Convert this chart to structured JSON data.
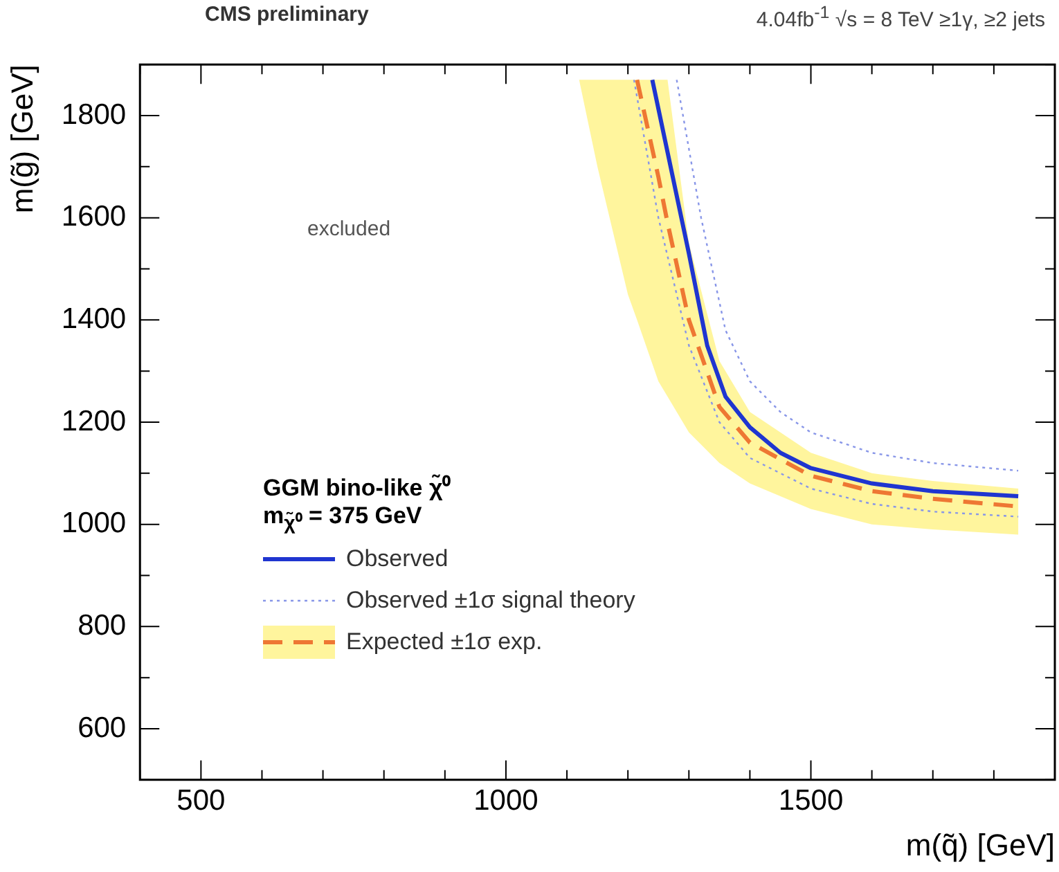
{
  "chart_data": {
    "type": "line",
    "title": "CMS preliminary",
    "subtitle": "4.04fb$^{-1}$ √s = 8 TeV   ≥1γ, ≥2 jets",
    "xlabel": "m(q̃) [GeV]",
    "ylabel": "m(g̃) [GeV]",
    "legend_title": "GGM bino-like χ̃⁰",
    "annotations": [
      "m$_{χ̃⁰}$ = 375 GeV",
      "excluded"
    ],
    "xlim": [
      400,
      1900
    ],
    "ylim": [
      500,
      1900
    ],
    "xticks": [
      {
        "value": 400,
        "label": null
      },
      500,
      {
        "value": 600,
        "label": null
      },
      {
        "value": 700,
        "label": null
      },
      {
        "value": 800,
        "label": null
      },
      {
        "value": 900,
        "label": null
      },
      1000,
      {
        "value": 1100,
        "label": null
      },
      {
        "value": 1200,
        "label": null
      },
      {
        "value": 1300,
        "label": null
      },
      {
        "value": 1400,
        "label": null
      },
      1500,
      {
        "value": 1600,
        "label": null
      },
      {
        "value": 1700,
        "label": null
      },
      {
        "value": 1800,
        "label": null
      },
      {
        "value": 1900,
        "label": null
      }
    ],
    "yticks": [
      {
        "value": 500,
        "label": null
      },
      600,
      {
        "value": 700,
        "label": null
      },
      800,
      {
        "value": 900,
        "label": null
      },
      1000,
      {
        "value": 1100,
        "label": null
      },
      1200,
      {
        "value": 1300,
        "label": null
      },
      1400,
      {
        "value": 1500,
        "label": null
      },
      1600,
      {
        "value": 1700,
        "label": null
      },
      1800,
      {
        "value": 1900,
        "label": null
      }
    ],
    "grid": false,
    "legend": "bottom left",
    "marker": "none",
    "series": [
      {
        "name": "Expected ±1σ exp.",
        "color": "#ee7733",
        "line_style": "dashed",
        "x": [
          1120,
          1150,
          1200,
          1215,
          1250,
          1265,
          1300,
          1350,
          1400,
          1500,
          1600,
          1700,
          1840
        ],
        "values": [
          null,
          null,
          null,
          1870,
          1680,
          1590,
          1400,
          1230,
          1160,
          1095,
          1065,
          1050,
          1035
        ],
        "upper": [
          1870,
          1870,
          1870,
          1870,
          1870,
          1870,
          1550,
          1320,
          1220,
          1140,
          1100,
          1085,
          1070
        ],
        "lower": [
          1870,
          1700,
          1450,
          1400,
          1280,
          1250,
          1180,
          1120,
          1080,
          1030,
          1000,
          990,
          980
        ]
      },
      {
        "name": "Observed ±1σ signal theory",
        "color": "#8896e8",
        "line_style": "dotted",
        "x": [
          1280,
          1320,
          1360,
          1400,
          1450,
          1500,
          1600,
          1700,
          1840
        ],
        "values": [
          1870,
          1600,
          1380,
          1280,
          1220,
          1180,
          1140,
          1120,
          1105
        ]
      },
      {
        "color": "#8896e8",
        "line_style": "dotted",
        "x": [
          1210,
          1250,
          1300,
          1350,
          1400,
          1500,
          1600,
          1700,
          1840
        ],
        "values": [
          1870,
          1600,
          1350,
          1200,
          1130,
          1070,
          1040,
          1025,
          1015
        ]
      },
      {
        "name": "Observed",
        "color": "#1f35d0",
        "line_style": "solid",
        "x": [
          1240,
          1270,
          1300,
          1330,
          1360,
          1400,
          1450,
          1500,
          1600,
          1700,
          1840
        ],
        "values": [
          1870,
          1700,
          1530,
          1350,
          1250,
          1190,
          1140,
          1110,
          1080,
          1065,
          1055
        ]
      }
    ]
  }
}
